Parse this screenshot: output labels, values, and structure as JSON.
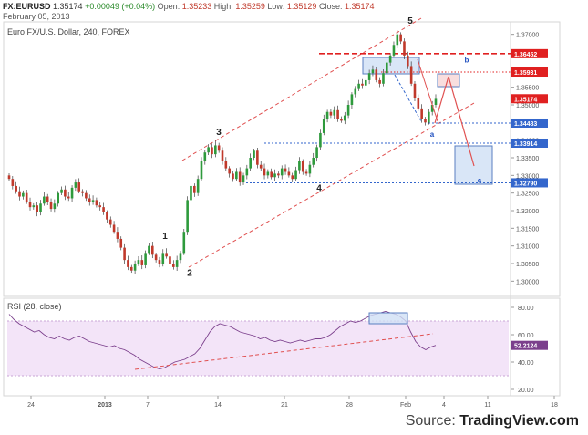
{
  "header": {
    "symbol": "FX:EURUSD",
    "last": "1.35174",
    "change": "+0.00049 (+0.04%)",
    "open_label": "Open:",
    "open": "1.35233",
    "high_label": "High:",
    "high": "1.35259",
    "low_label": "Low:",
    "low": "1.35129",
    "close_label": "Close:",
    "close": "1.35174",
    "date": "February 05, 2013"
  },
  "source": {
    "prefix": "Source: ",
    "brand": "TradingView.com"
  },
  "colors": {
    "up": "#2e9a3c",
    "down": "#c0392b",
    "wick": "#222222",
    "channel": "#e05050",
    "level_blue": "#3366cc",
    "level_red": "#e02020",
    "box_fill": "#cfe0f5",
    "box_stroke": "#5a7fc0",
    "rsi_line": "#7b3f8c",
    "rsi_band": "#f3e4f8",
    "label_blue": "#1f4fbf",
    "label_red": "#e02020"
  },
  "chart_data": [
    {
      "type": "candlestick",
      "title": "Euro FX/U.S. Dollar, 240, FOREX",
      "xlabel": "",
      "ylabel": "",
      "x_ticks": [
        "24",
        "2013",
        "7",
        "14",
        "21",
        "28",
        "Feb",
        "4",
        "11",
        "18"
      ],
      "y_ticks": [
        1.3,
        1.305,
        1.31,
        1.315,
        1.32,
        1.325,
        1.33,
        1.335,
        1.34,
        1.345,
        1.35,
        1.355,
        1.36,
        1.365,
        1.37
      ],
      "ylim": [
        1.2975,
        1.3725
      ],
      "grid": false,
      "candles_note": "approximate closing path of 4-hour candles read off the figure",
      "closes": [
        1.329,
        1.327,
        1.3255,
        1.324,
        1.325,
        1.3225,
        1.321,
        1.3215,
        1.3195,
        1.322,
        1.324,
        1.3225,
        1.3205,
        1.322,
        1.325,
        1.326,
        1.324,
        1.3235,
        1.3265,
        1.328,
        1.3255,
        1.325,
        1.3235,
        1.3225,
        1.323,
        1.3215,
        1.321,
        1.3195,
        1.3175,
        1.316,
        1.314,
        1.312,
        1.3095,
        1.306,
        1.304,
        1.303,
        1.305,
        1.306,
        1.3045,
        1.308,
        1.31,
        1.3075,
        1.306,
        1.305,
        1.308,
        1.307,
        1.305,
        1.304,
        1.306,
        1.308,
        1.314,
        1.323,
        1.327,
        1.325,
        1.329,
        1.334,
        1.3365,
        1.338,
        1.336,
        1.3385,
        1.337,
        1.334,
        1.332,
        1.3305,
        1.329,
        1.331,
        1.328,
        1.33,
        1.332,
        1.335,
        1.337,
        1.333,
        1.332,
        1.33,
        1.331,
        1.3295,
        1.3305,
        1.33,
        1.332,
        1.331,
        1.33,
        1.329,
        1.3315,
        1.334,
        1.331,
        1.3305,
        1.333,
        1.335,
        1.338,
        1.342,
        1.346,
        1.348,
        1.347,
        1.3485,
        1.346,
        1.3455,
        1.347,
        1.35,
        1.353,
        1.3545,
        1.356,
        1.3555,
        1.357,
        1.359,
        1.36,
        1.357,
        1.356,
        1.359,
        1.362,
        1.364,
        1.367,
        1.37,
        1.368,
        1.364,
        1.361,
        1.356,
        1.352,
        1.349,
        1.346,
        1.345,
        1.348,
        1.35,
        1.3517
      ],
      "wave_labels": [
        {
          "text": "1",
          "x": "Jan 9",
          "y": 1.312
        },
        {
          "text": "2",
          "x": "Jan 10",
          "y": 1.3015
        },
        {
          "text": "3",
          "x": "Jan 14",
          "y": 1.3415
        },
        {
          "text": "4",
          "x": "Jan 25",
          "y": 1.3255
        },
        {
          "text": "5",
          "x": "Feb 1",
          "y": 1.373
        },
        {
          "text": "a",
          "x": "Feb 4",
          "y": 1.341
        },
        {
          "text": "b",
          "x": "Feb 6",
          "y": 1.362
        },
        {
          "text": "c",
          "x": "Feb 9",
          "y": 1.3279
        }
      ],
      "horizontal_levels": [
        {
          "label": "1.36452",
          "value": 1.36452,
          "style": "red-dashed-thick"
        },
        {
          "label": "1.35931",
          "value": 1.35931,
          "style": "red-dotted"
        },
        {
          "label": "1.35174",
          "value": 1.35174,
          "style": "price-marker"
        },
        {
          "label": "1.34483",
          "value": 1.34483,
          "style": "blue-dotted"
        },
        {
          "label": "1.33914",
          "value": 1.33914,
          "style": "blue-dotted"
        },
        {
          "label": "1.32790",
          "value": 1.3279,
          "style": "blue-dotted"
        }
      ],
      "price_marker": {
        "label": "1.35174",
        "value": 1.35174
      }
    },
    {
      "type": "line",
      "title": "RSI (28, close)",
      "xlabel": "",
      "ylabel": "",
      "y_ticks": [
        20.0,
        40.0,
        60.0,
        80.0
      ],
      "ylim": [
        18,
        84
      ],
      "band": [
        30,
        70
      ],
      "last_value_label": "52.2124",
      "values": [
        75,
        71,
        68,
        66,
        64,
        62,
        63,
        60,
        58,
        57,
        59,
        57,
        56,
        58,
        59,
        57,
        55,
        54,
        53,
        52,
        51,
        52,
        50,
        49,
        47,
        45,
        42,
        40,
        38,
        36,
        35,
        36,
        38,
        40,
        41,
        42,
        44,
        46,
        50,
        56,
        62,
        66,
        68,
        67,
        66,
        64,
        62,
        61,
        60,
        59,
        57,
        58,
        56,
        55,
        56,
        55,
        54,
        55,
        56,
        55,
        56,
        57,
        57,
        58,
        60,
        63,
        66,
        68,
        70,
        69,
        70,
        72,
        74,
        75,
        76,
        77,
        76,
        75,
        73,
        70,
        62,
        55,
        51,
        49,
        51,
        52.2
      ]
    }
  ]
}
